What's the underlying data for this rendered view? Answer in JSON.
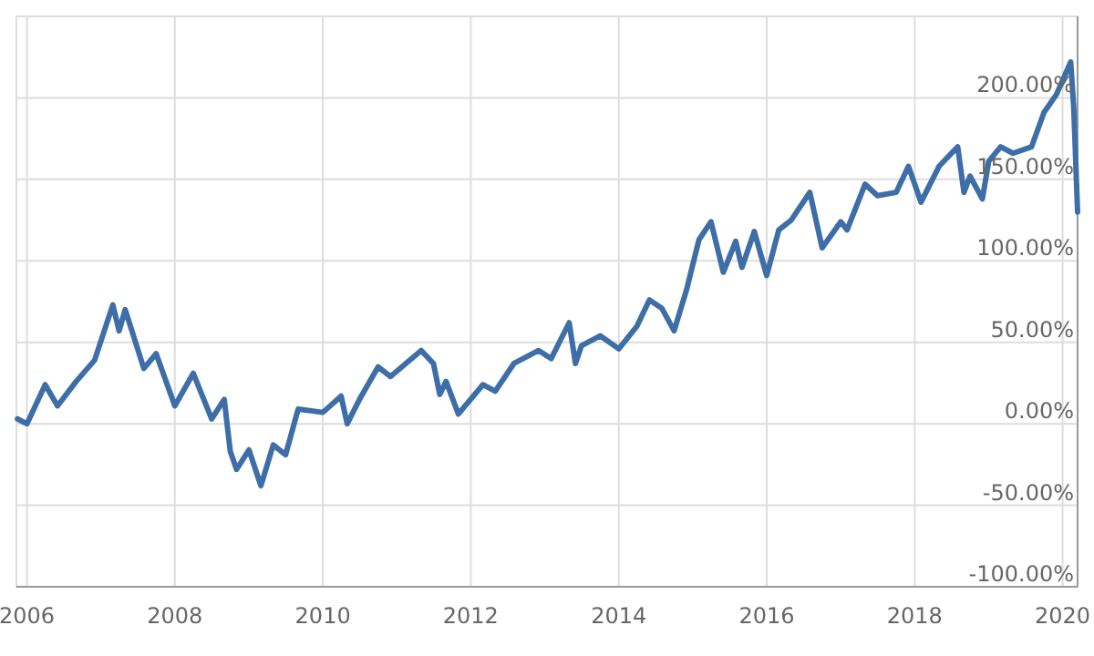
{
  "chart_data": {
    "type": "line",
    "x": [
      "2005-11-15",
      "2006-01",
      "2006-04",
      "2006-06",
      "2006-09",
      "2006-12",
      "2007-03",
      "2007-04",
      "2007-05",
      "2007-08",
      "2007-10",
      "2008-01",
      "2008-04",
      "2008-07",
      "2008-09",
      "2008-10",
      "2008-11",
      "2009-01",
      "2009-03",
      "2009-05",
      "2009-07",
      "2009-09",
      "2010-01",
      "2010-04",
      "2010-05",
      "2010-07",
      "2010-10",
      "2010-12",
      "2011-05",
      "2011-07",
      "2011-08",
      "2011-09",
      "2011-11",
      "2012-03",
      "2012-05",
      "2012-08",
      "2012-12",
      "2013-02",
      "2013-05",
      "2013-06",
      "2013-07",
      "2013-10",
      "2014-01",
      "2014-04",
      "2014-06",
      "2014-08",
      "2014-10",
      "2014-12",
      "2015-02",
      "2015-04",
      "2015-06",
      "2015-08",
      "2015-09",
      "2015-11",
      "2016-01",
      "2016-03",
      "2016-05",
      "2016-08",
      "2016-10",
      "2017-01",
      "2017-02",
      "2017-05",
      "2017-07",
      "2017-10",
      "2017-12",
      "2018-02",
      "2018-05",
      "2018-08",
      "2018-09",
      "2018-10",
      "2018-12",
      "2019-01",
      "2019-03",
      "2019-05",
      "2019-08",
      "2019-10",
      "2019-12",
      "2020-02-10",
      "2020-02-25",
      "2020-03-15"
    ],
    "series": [
      {
        "color": "#3d6ea8",
        "values": [
          3,
          0,
          24,
          11,
          26,
          39,
          73,
          57,
          70,
          34,
          43,
          11,
          31,
          3,
          15,
          -17,
          -28,
          -16,
          -38,
          -13,
          -19,
          9,
          7,
          17,
          0,
          15,
          35,
          29,
          45,
          37,
          18,
          26,
          6,
          24,
          20,
          37,
          45,
          40,
          62,
          37,
          48,
          54,
          46,
          60,
          76,
          71,
          57,
          82,
          113,
          124,
          93,
          112,
          96,
          118,
          91,
          119,
          125,
          142,
          108,
          124,
          119,
          147,
          140,
          142,
          158,
          136,
          158,
          170,
          142,
          152,
          138,
          161,
          170,
          166,
          170,
          191,
          202,
          222,
          194,
          130
        ]
      }
    ],
    "xlim": [
      "2005-11-10",
      "2020-03-15"
    ],
    "xticks": [
      {
        "value": "2006",
        "label": "2006"
      },
      {
        "value": "2008",
        "label": "2008"
      },
      {
        "value": "2010",
        "label": "2010"
      },
      {
        "value": "2012",
        "label": "2012"
      },
      {
        "value": "2014",
        "label": "2014"
      },
      {
        "value": "2016",
        "label": "2016"
      },
      {
        "value": "2018",
        "label": "2018"
      },
      {
        "value": "2020",
        "label": "2020"
      }
    ],
    "ylim": [
      -100,
      250
    ],
    "yticks": [
      {
        "value": -100,
        "label": "-100.00%"
      },
      {
        "value": -50,
        "label": "-50.00%"
      },
      {
        "value": 0,
        "label": "0.00%"
      },
      {
        "value": 50,
        "label": "50.00%"
      },
      {
        "value": 100,
        "label": "100.00%"
      },
      {
        "value": 150,
        "label": "150.00%"
      },
      {
        "value": 200,
        "label": "200.00%"
      }
    ],
    "grid": true,
    "marker": "none",
    "line_style": "solid"
  }
}
